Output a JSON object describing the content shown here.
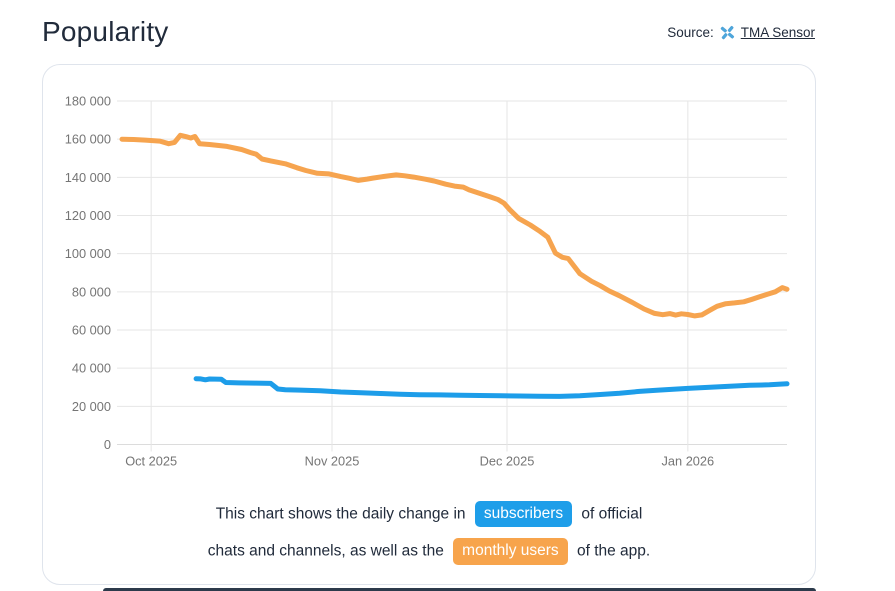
{
  "header": {
    "title": "Popularity",
    "source_label": "Source:",
    "source_link": "TMA Sensor"
  },
  "caption": {
    "line1_before": "This chart shows the daily change in",
    "badge_subscribers": "subscribers",
    "line1_after": "of official",
    "line2_before": "chats and channels, as well as the",
    "badge_monthly_users": "monthly users",
    "line2_after": "of the app."
  },
  "colors": {
    "subscribers_blue": "#1d9de9",
    "monthly_users_orange": "#f6a44f",
    "title_text": "#212b3b",
    "axis_text": "#757575",
    "gridline": "#e6e6e6",
    "axis_line": "#dcdcdc",
    "card_border": "#dfe4ec",
    "footer_bar": "#2c3a4b"
  },
  "chart_data": {
    "type": "line",
    "title": "",
    "xlabel": "",
    "ylabel": "",
    "grid": true,
    "legend_position": "none",
    "ylim": [
      0,
      180000
    ],
    "x_domain_days": [
      0,
      114
    ],
    "x_ticks": [
      {
        "day": 5,
        "label": "Oct 2025"
      },
      {
        "day": 36,
        "label": "Nov 2025"
      },
      {
        "day": 66,
        "label": "Dec 2025"
      },
      {
        "day": 97,
        "label": "Jan 2026"
      }
    ],
    "y_ticks": [
      {
        "value": 0,
        "label": "0"
      },
      {
        "value": 20000,
        "label": "20 000"
      },
      {
        "value": 40000,
        "label": "40 000"
      },
      {
        "value": 60000,
        "label": "60 000"
      },
      {
        "value": 80000,
        "label": "80 000"
      },
      {
        "value": 100000,
        "label": "100 000"
      },
      {
        "value": 120000,
        "label": "120 000"
      },
      {
        "value": 140000,
        "label": "140 000"
      },
      {
        "value": 160000,
        "label": "160 000"
      },
      {
        "value": 180000,
        "label": "180 000"
      }
    ],
    "series": [
      {
        "name": "monthly users",
        "color": "#f6a44f",
        "points": [
          [
            0,
            160000
          ],
          [
            2,
            159800
          ],
          [
            4,
            159500
          ],
          [
            6.5,
            159000
          ],
          [
            8,
            157600
          ],
          [
            9,
            158300
          ],
          [
            10,
            162000
          ],
          [
            11,
            161300
          ],
          [
            11.8,
            160600
          ],
          [
            12.5,
            161400
          ],
          [
            13.3,
            157600
          ],
          [
            15,
            157200
          ],
          [
            18,
            156200
          ],
          [
            20.5,
            154600
          ],
          [
            22,
            153000
          ],
          [
            23,
            152100
          ],
          [
            24,
            149600
          ],
          [
            25.5,
            148600
          ],
          [
            28,
            147100
          ],
          [
            30,
            145000
          ],
          [
            31.5,
            143600
          ],
          [
            33.5,
            142100
          ],
          [
            35.5,
            141800
          ],
          [
            37.5,
            140400
          ],
          [
            39,
            139500
          ],
          [
            40.5,
            138400
          ],
          [
            42,
            139100
          ],
          [
            43,
            139600
          ],
          [
            45,
            140500
          ],
          [
            47,
            141300
          ],
          [
            48.5,
            140800
          ],
          [
            50,
            140100
          ],
          [
            52,
            139000
          ],
          [
            53.5,
            138100
          ],
          [
            55.5,
            136400
          ],
          [
            57,
            135400
          ],
          [
            58.5,
            134900
          ],
          [
            59.5,
            133400
          ],
          [
            61,
            131900
          ],
          [
            63,
            129900
          ],
          [
            64.5,
            128300
          ],
          [
            65.5,
            126400
          ],
          [
            66.5,
            123000
          ],
          [
            68,
            118500
          ],
          [
            70,
            115000
          ],
          [
            71.5,
            112000
          ],
          [
            73,
            108600
          ],
          [
            74.3,
            100300
          ],
          [
            75.5,
            98100
          ],
          [
            76.5,
            97400
          ],
          [
            78.5,
            89500
          ],
          [
            80.5,
            85500
          ],
          [
            82,
            83200
          ],
          [
            83.5,
            80500
          ],
          [
            85.3,
            77900
          ],
          [
            87.5,
            74400
          ],
          [
            89.5,
            71000
          ],
          [
            91.3,
            68700
          ],
          [
            92.7,
            68000
          ],
          [
            93.9,
            68600
          ],
          [
            94.9,
            67800
          ],
          [
            95.9,
            68500
          ],
          [
            97,
            68100
          ],
          [
            98.2,
            67400
          ],
          [
            99.4,
            67900
          ],
          [
            100.8,
            70400
          ],
          [
            102,
            72400
          ],
          [
            103.5,
            73800
          ],
          [
            105,
            74200
          ],
          [
            106.6,
            74800
          ],
          [
            108,
            76100
          ],
          [
            109.3,
            77400
          ],
          [
            110.7,
            78800
          ],
          [
            112,
            80000
          ],
          [
            113.2,
            82200
          ],
          [
            114,
            81400
          ]
        ]
      },
      {
        "name": "subscribers",
        "color": "#1d9de9",
        "points": [
          [
            12.7,
            34500
          ],
          [
            13.5,
            34400
          ],
          [
            14.3,
            33900
          ],
          [
            15,
            34300
          ],
          [
            17,
            34200
          ],
          [
            17.8,
            32500
          ],
          [
            20,
            32300
          ],
          [
            23,
            32200
          ],
          [
            25.5,
            32000
          ],
          [
            26.7,
            29100
          ],
          [
            28,
            28700
          ],
          [
            30.5,
            28500
          ],
          [
            34,
            28200
          ],
          [
            37.5,
            27500
          ],
          [
            41,
            27100
          ],
          [
            44.3,
            26700
          ],
          [
            47.7,
            26300
          ],
          [
            51,
            26100
          ],
          [
            54.5,
            26000
          ],
          [
            58,
            25800
          ],
          [
            61.3,
            25700
          ],
          [
            65,
            25500
          ],
          [
            68.2,
            25400
          ],
          [
            71.5,
            25300
          ],
          [
            75,
            25200
          ],
          [
            78.5,
            25500
          ],
          [
            82,
            26200
          ],
          [
            85.3,
            26900
          ],
          [
            88.7,
            27800
          ],
          [
            92,
            28500
          ],
          [
            97,
            29400
          ],
          [
            100.8,
            30000
          ],
          [
            104.2,
            30500
          ],
          [
            107.6,
            31000
          ],
          [
            111,
            31300
          ],
          [
            114,
            31800
          ]
        ]
      }
    ]
  }
}
